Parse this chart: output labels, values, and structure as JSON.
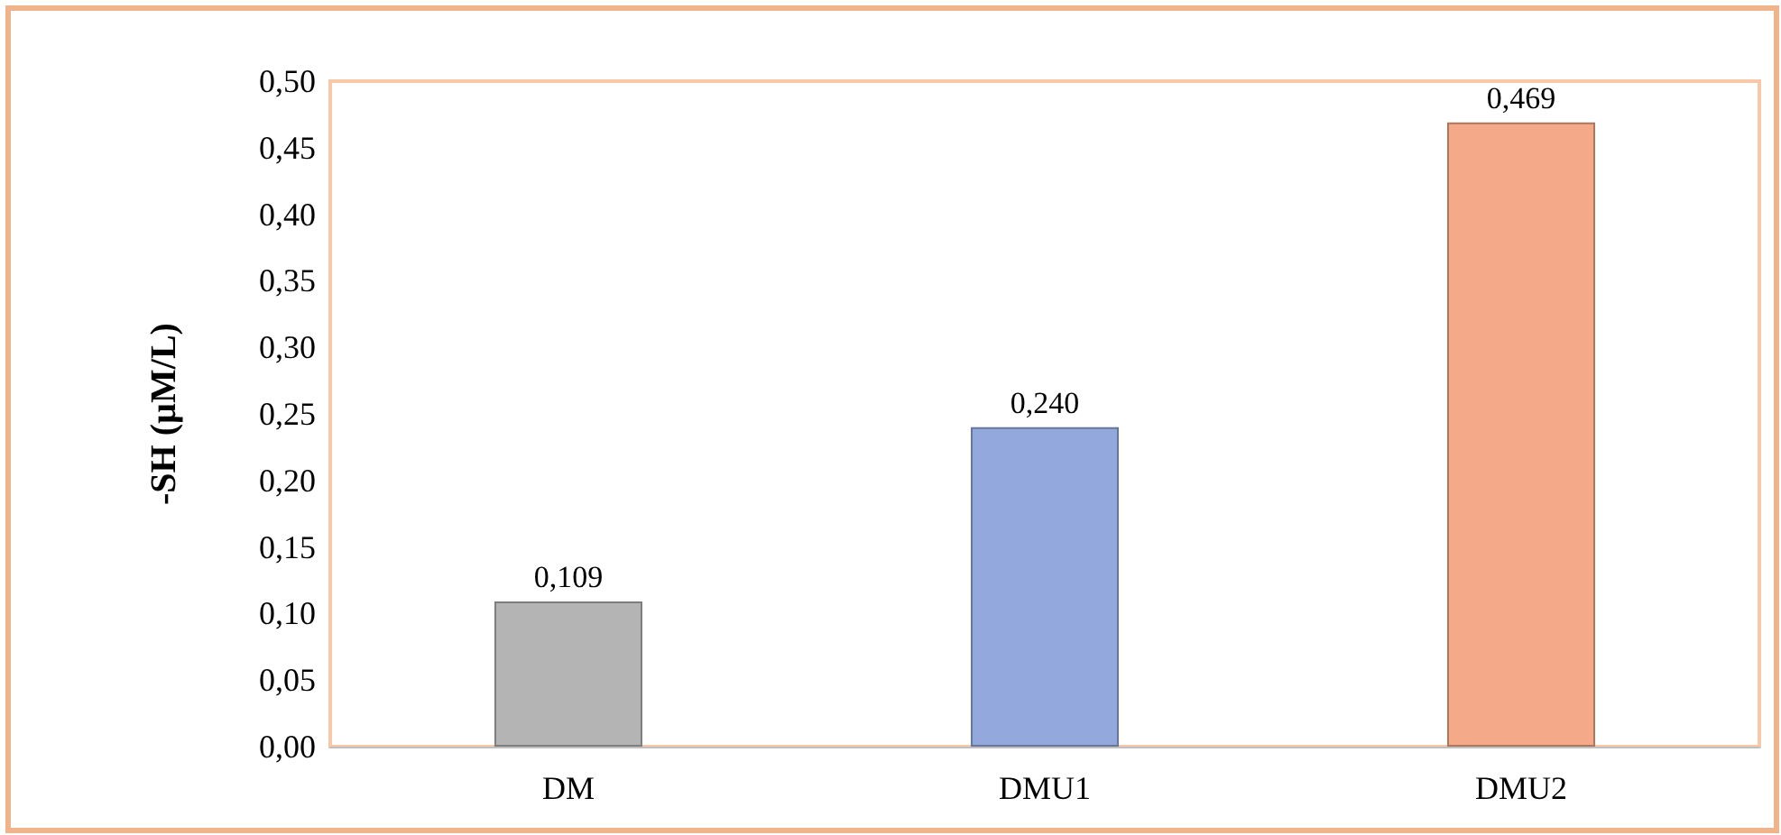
{
  "chart_data": {
    "type": "bar",
    "ylabel": "-SH (µM/L)",
    "categories": [
      "DM",
      "DMU1",
      "DMU2"
    ],
    "values": [
      0.109,
      0.24,
      0.469
    ],
    "colors": [
      "#b4b4b4",
      "#93a8dc",
      "#f4aa88"
    ],
    "value_labels": [
      "0,109",
      "0,240",
      "0,469"
    ],
    "ylim": [
      0,
      0.5
    ],
    "yticks": [
      {
        "value": 0,
        "label": "0,00"
      },
      {
        "value": 0.05,
        "label": "0,05"
      },
      {
        "value": 0.1,
        "label": "0,10"
      },
      {
        "value": 0.15,
        "label": "0,15"
      },
      {
        "value": 0.2,
        "label": "0,20"
      },
      {
        "value": 0.25,
        "label": "0,25"
      },
      {
        "value": 0.3,
        "label": "0,30"
      },
      {
        "value": 0.35,
        "label": "0,35"
      },
      {
        "value": 0.4,
        "label": "0,40"
      },
      {
        "value": 0.45,
        "label": "0,45"
      },
      {
        "value": 0.5,
        "label": "0,50"
      }
    ],
    "grid": false
  }
}
